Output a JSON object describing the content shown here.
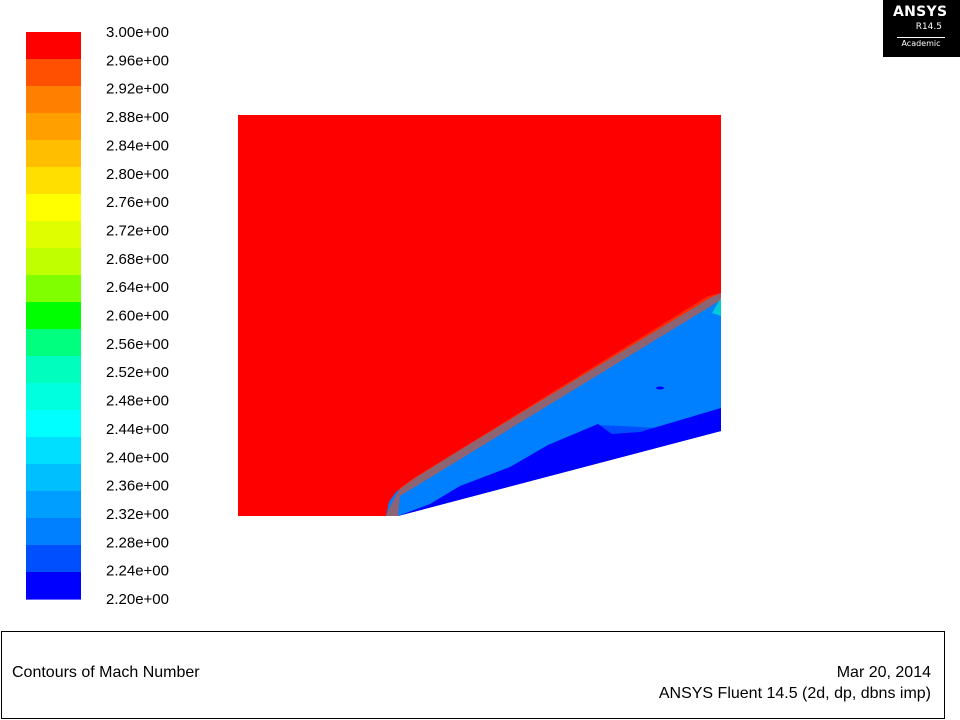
{
  "chart_data": {
    "type": "heatmap",
    "title": "Contours of Mach Number",
    "variable": "Mach Number",
    "colorbar": {
      "min": 2.2,
      "max": 3.0,
      "levels": 21,
      "tick_labels": [
        "3.00e+00",
        "2.96e+00",
        "2.92e+00",
        "2.88e+00",
        "2.84e+00",
        "2.80e+00",
        "2.76e+00",
        "2.72e+00",
        "2.68e+00",
        "2.64e+00",
        "2.60e+00",
        "2.56e+00",
        "2.52e+00",
        "2.48e+00",
        "2.44e+00",
        "2.40e+00",
        "2.36e+00",
        "2.32e+00",
        "2.28e+00",
        "2.24e+00",
        "2.20e+00"
      ],
      "colors": [
        "#ff0000",
        "#ff4f00",
        "#ff7f00",
        "#ff9f00",
        "#ffbf00",
        "#ffdf00",
        "#ffff00",
        "#dfff00",
        "#bfff00",
        "#7fff00",
        "#00ff00",
        "#00ff7f",
        "#00ffbf",
        "#00ffdf",
        "#00ffff",
        "#00dfff",
        "#00bfff",
        "#009fff",
        "#007fff",
        "#004fff",
        "#0000ff"
      ]
    },
    "field": {
      "freestream_mach": 3.0,
      "post_shock_mach_range": [
        2.2,
        2.32
      ],
      "feature": "oblique shock wave from wedge compression corner"
    }
  },
  "footer": {
    "title": "Contours of Mach Number",
    "date": "Mar 20, 2014",
    "version": "ANSYS Fluent 14.5 (2d, dp, dbns imp)"
  },
  "logo": {
    "brand": "ANSYS",
    "release": "R14.5",
    "edition": "Academic"
  }
}
